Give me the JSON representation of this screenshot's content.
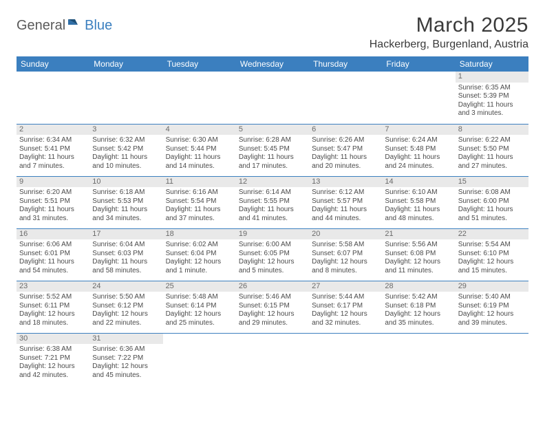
{
  "logo": {
    "part1": "General",
    "part2": "Blue"
  },
  "title": "March 2025",
  "location": "Hackerberg, Burgenland, Austria",
  "day_headers": [
    "Sunday",
    "Monday",
    "Tuesday",
    "Wednesday",
    "Thursday",
    "Friday",
    "Saturday"
  ],
  "colors": {
    "header_bg": "#3b7fbf",
    "header_text": "#ffffff",
    "day_num_bg": "#e9e9e9",
    "border": "#3b7fbf"
  },
  "weeks": [
    [
      {
        "day": "",
        "sunrise": "",
        "sunset": "",
        "daylight": ""
      },
      {
        "day": "",
        "sunrise": "",
        "sunset": "",
        "daylight": ""
      },
      {
        "day": "",
        "sunrise": "",
        "sunset": "",
        "daylight": ""
      },
      {
        "day": "",
        "sunrise": "",
        "sunset": "",
        "daylight": ""
      },
      {
        "day": "",
        "sunrise": "",
        "sunset": "",
        "daylight": ""
      },
      {
        "day": "",
        "sunrise": "",
        "sunset": "",
        "daylight": ""
      },
      {
        "day": "1",
        "sunrise": "Sunrise: 6:35 AM",
        "sunset": "Sunset: 5:39 PM",
        "daylight": "Daylight: 11 hours and 3 minutes."
      }
    ],
    [
      {
        "day": "2",
        "sunrise": "Sunrise: 6:34 AM",
        "sunset": "Sunset: 5:41 PM",
        "daylight": "Daylight: 11 hours and 7 minutes."
      },
      {
        "day": "3",
        "sunrise": "Sunrise: 6:32 AM",
        "sunset": "Sunset: 5:42 PM",
        "daylight": "Daylight: 11 hours and 10 minutes."
      },
      {
        "day": "4",
        "sunrise": "Sunrise: 6:30 AM",
        "sunset": "Sunset: 5:44 PM",
        "daylight": "Daylight: 11 hours and 14 minutes."
      },
      {
        "day": "5",
        "sunrise": "Sunrise: 6:28 AM",
        "sunset": "Sunset: 5:45 PM",
        "daylight": "Daylight: 11 hours and 17 minutes."
      },
      {
        "day": "6",
        "sunrise": "Sunrise: 6:26 AM",
        "sunset": "Sunset: 5:47 PM",
        "daylight": "Daylight: 11 hours and 20 minutes."
      },
      {
        "day": "7",
        "sunrise": "Sunrise: 6:24 AM",
        "sunset": "Sunset: 5:48 PM",
        "daylight": "Daylight: 11 hours and 24 minutes."
      },
      {
        "day": "8",
        "sunrise": "Sunrise: 6:22 AM",
        "sunset": "Sunset: 5:50 PM",
        "daylight": "Daylight: 11 hours and 27 minutes."
      }
    ],
    [
      {
        "day": "9",
        "sunrise": "Sunrise: 6:20 AM",
        "sunset": "Sunset: 5:51 PM",
        "daylight": "Daylight: 11 hours and 31 minutes."
      },
      {
        "day": "10",
        "sunrise": "Sunrise: 6:18 AM",
        "sunset": "Sunset: 5:53 PM",
        "daylight": "Daylight: 11 hours and 34 minutes."
      },
      {
        "day": "11",
        "sunrise": "Sunrise: 6:16 AM",
        "sunset": "Sunset: 5:54 PM",
        "daylight": "Daylight: 11 hours and 37 minutes."
      },
      {
        "day": "12",
        "sunrise": "Sunrise: 6:14 AM",
        "sunset": "Sunset: 5:55 PM",
        "daylight": "Daylight: 11 hours and 41 minutes."
      },
      {
        "day": "13",
        "sunrise": "Sunrise: 6:12 AM",
        "sunset": "Sunset: 5:57 PM",
        "daylight": "Daylight: 11 hours and 44 minutes."
      },
      {
        "day": "14",
        "sunrise": "Sunrise: 6:10 AM",
        "sunset": "Sunset: 5:58 PM",
        "daylight": "Daylight: 11 hours and 48 minutes."
      },
      {
        "day": "15",
        "sunrise": "Sunrise: 6:08 AM",
        "sunset": "Sunset: 6:00 PM",
        "daylight": "Daylight: 11 hours and 51 minutes."
      }
    ],
    [
      {
        "day": "16",
        "sunrise": "Sunrise: 6:06 AM",
        "sunset": "Sunset: 6:01 PM",
        "daylight": "Daylight: 11 hours and 54 minutes."
      },
      {
        "day": "17",
        "sunrise": "Sunrise: 6:04 AM",
        "sunset": "Sunset: 6:03 PM",
        "daylight": "Daylight: 11 hours and 58 minutes."
      },
      {
        "day": "18",
        "sunrise": "Sunrise: 6:02 AM",
        "sunset": "Sunset: 6:04 PM",
        "daylight": "Daylight: 12 hours and 1 minute."
      },
      {
        "day": "19",
        "sunrise": "Sunrise: 6:00 AM",
        "sunset": "Sunset: 6:05 PM",
        "daylight": "Daylight: 12 hours and 5 minutes."
      },
      {
        "day": "20",
        "sunrise": "Sunrise: 5:58 AM",
        "sunset": "Sunset: 6:07 PM",
        "daylight": "Daylight: 12 hours and 8 minutes."
      },
      {
        "day": "21",
        "sunrise": "Sunrise: 5:56 AM",
        "sunset": "Sunset: 6:08 PM",
        "daylight": "Daylight: 12 hours and 11 minutes."
      },
      {
        "day": "22",
        "sunrise": "Sunrise: 5:54 AM",
        "sunset": "Sunset: 6:10 PM",
        "daylight": "Daylight: 12 hours and 15 minutes."
      }
    ],
    [
      {
        "day": "23",
        "sunrise": "Sunrise: 5:52 AM",
        "sunset": "Sunset: 6:11 PM",
        "daylight": "Daylight: 12 hours and 18 minutes."
      },
      {
        "day": "24",
        "sunrise": "Sunrise: 5:50 AM",
        "sunset": "Sunset: 6:12 PM",
        "daylight": "Daylight: 12 hours and 22 minutes."
      },
      {
        "day": "25",
        "sunrise": "Sunrise: 5:48 AM",
        "sunset": "Sunset: 6:14 PM",
        "daylight": "Daylight: 12 hours and 25 minutes."
      },
      {
        "day": "26",
        "sunrise": "Sunrise: 5:46 AM",
        "sunset": "Sunset: 6:15 PM",
        "daylight": "Daylight: 12 hours and 29 minutes."
      },
      {
        "day": "27",
        "sunrise": "Sunrise: 5:44 AM",
        "sunset": "Sunset: 6:17 PM",
        "daylight": "Daylight: 12 hours and 32 minutes."
      },
      {
        "day": "28",
        "sunrise": "Sunrise: 5:42 AM",
        "sunset": "Sunset: 6:18 PM",
        "daylight": "Daylight: 12 hours and 35 minutes."
      },
      {
        "day": "29",
        "sunrise": "Sunrise: 5:40 AM",
        "sunset": "Sunset: 6:19 PM",
        "daylight": "Daylight: 12 hours and 39 minutes."
      }
    ],
    [
      {
        "day": "30",
        "sunrise": "Sunrise: 6:38 AM",
        "sunset": "Sunset: 7:21 PM",
        "daylight": "Daylight: 12 hours and 42 minutes."
      },
      {
        "day": "31",
        "sunrise": "Sunrise: 6:36 AM",
        "sunset": "Sunset: 7:22 PM",
        "daylight": "Daylight: 12 hours and 45 minutes."
      },
      {
        "day": "",
        "sunrise": "",
        "sunset": "",
        "daylight": ""
      },
      {
        "day": "",
        "sunrise": "",
        "sunset": "",
        "daylight": ""
      },
      {
        "day": "",
        "sunrise": "",
        "sunset": "",
        "daylight": ""
      },
      {
        "day": "",
        "sunrise": "",
        "sunset": "",
        "daylight": ""
      },
      {
        "day": "",
        "sunrise": "",
        "sunset": "",
        "daylight": ""
      }
    ]
  ]
}
